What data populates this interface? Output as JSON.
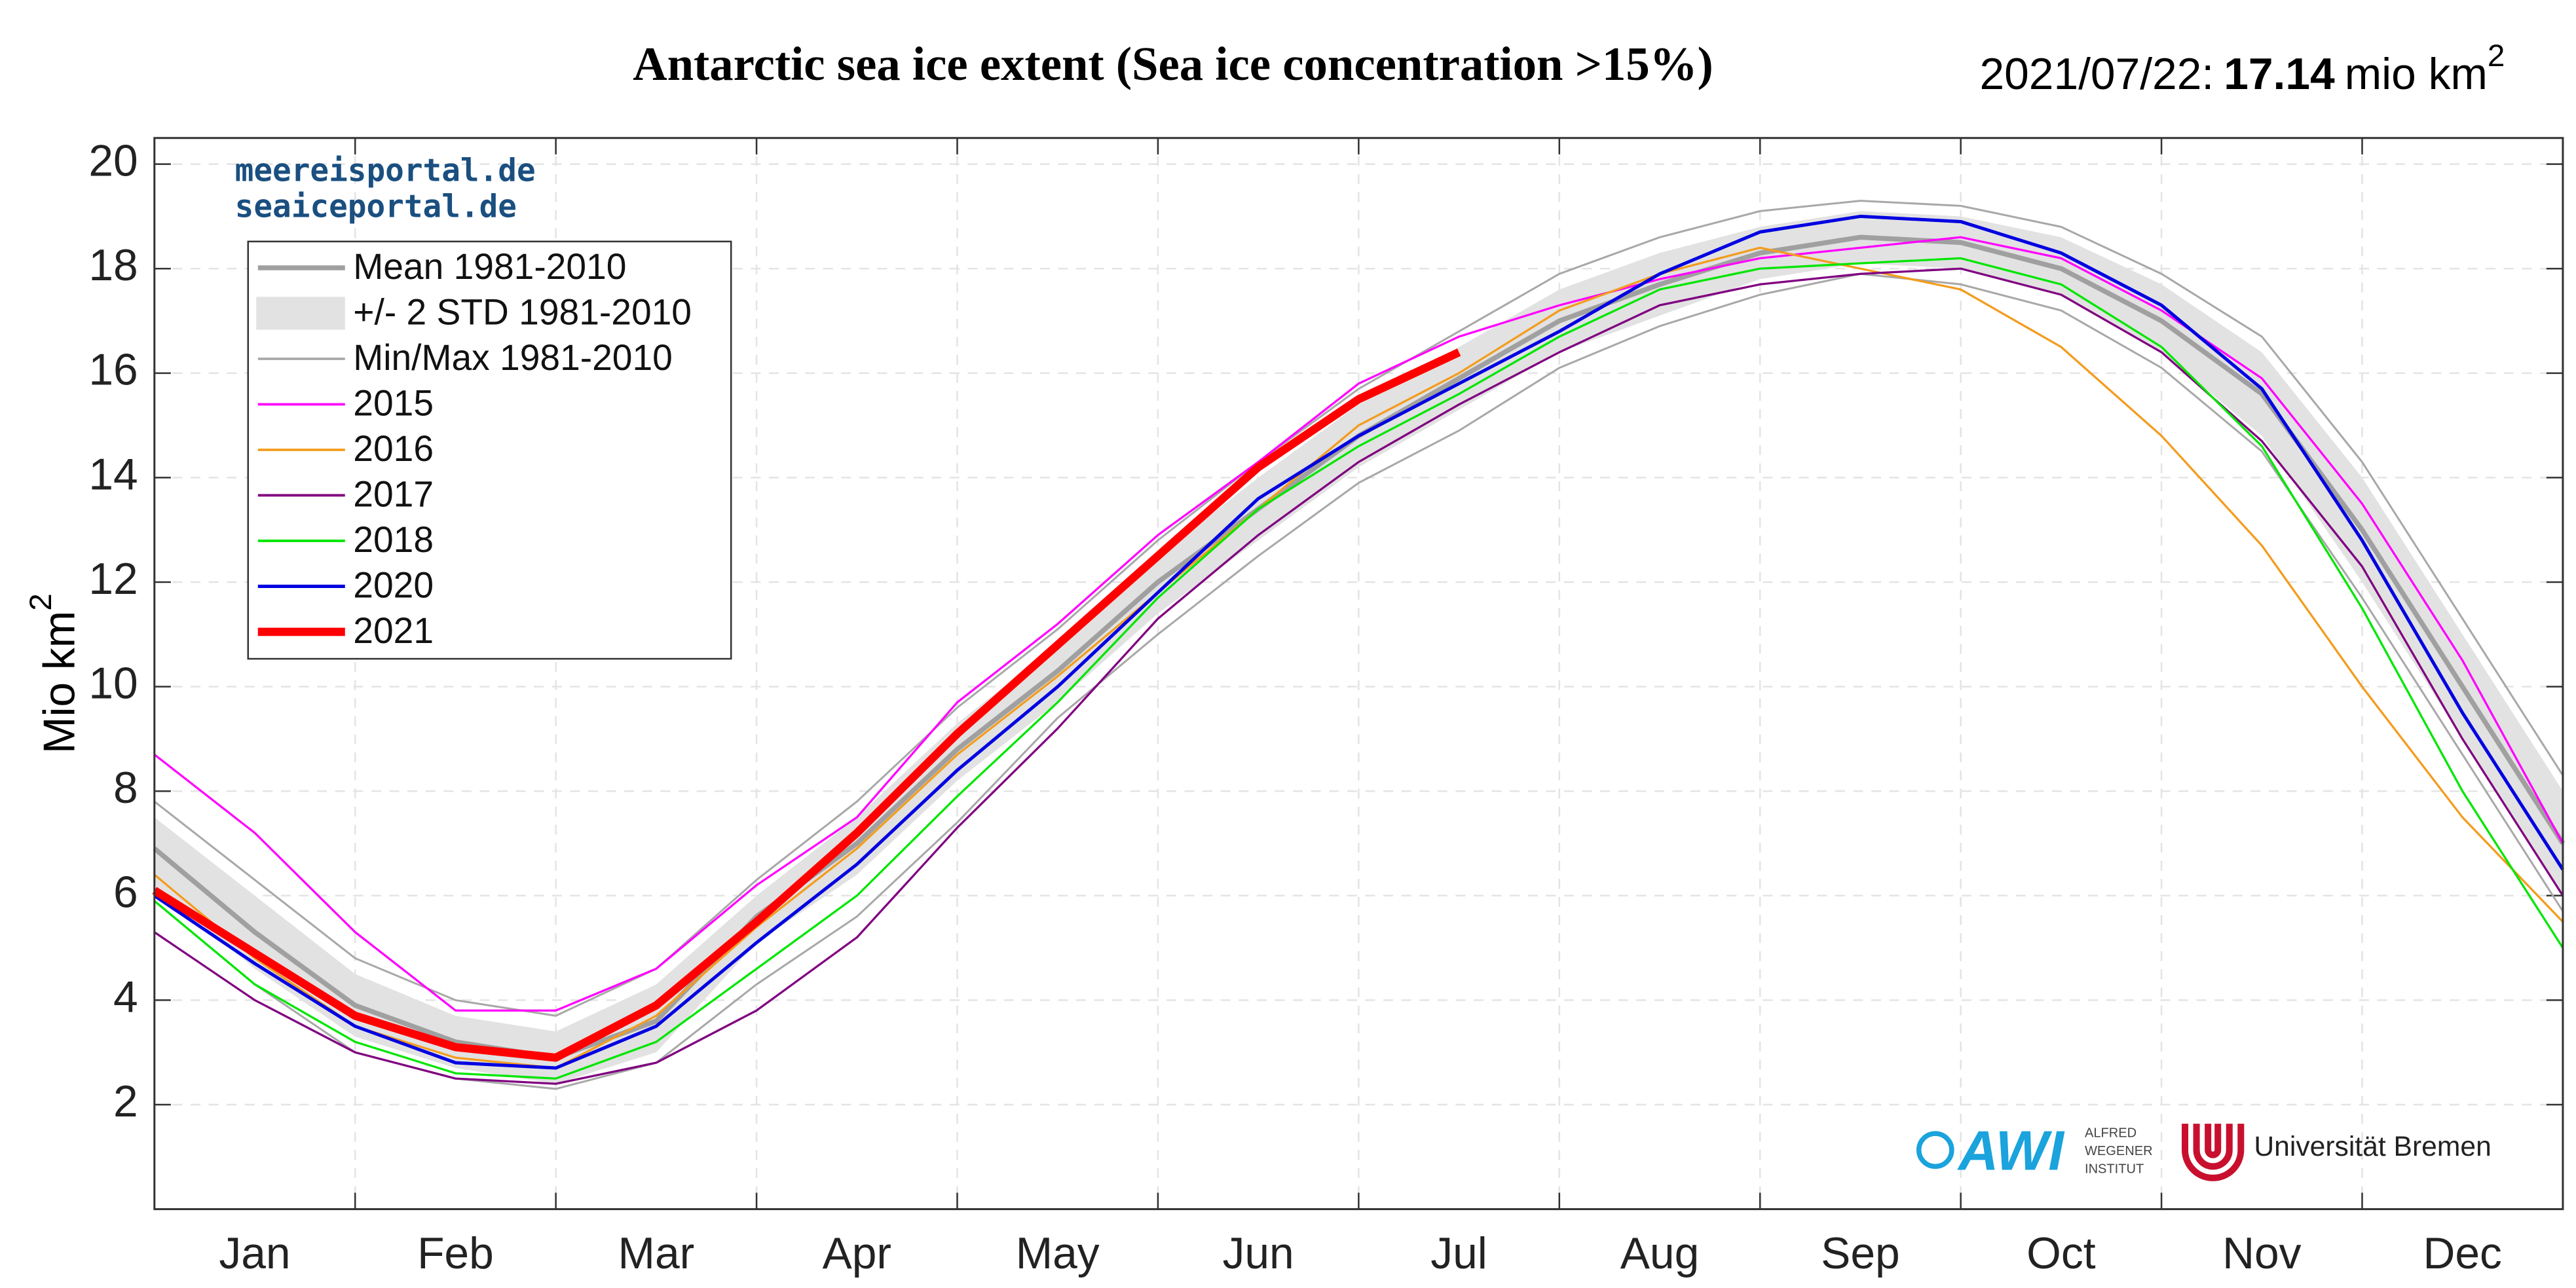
{
  "chart_data": {
    "type": "line",
    "title": "Antarctic sea ice extent (Sea ice concentration >15%)",
    "annotation": {
      "date": "2021/07/22:",
      "value": "17.14",
      "unit": "mio km",
      "unit_sup": "2"
    },
    "y_label": "Mio km",
    "y_label_sup": "2",
    "categories": [
      null,
      "Jan",
      null,
      "Feb",
      null,
      "Mar",
      null,
      "Apr",
      null,
      "May",
      null,
      "Jun",
      null,
      "Jul",
      null,
      "Aug",
      null,
      "Sep",
      null,
      "Oct",
      null,
      "Nov",
      null,
      "Dec",
      null
    ],
    "ylim": [
      0,
      20.5
    ],
    "yticks": [
      2,
      4,
      6,
      8,
      10,
      12,
      14,
      16,
      18,
      20
    ],
    "grid": true,
    "band": {
      "name": "+/- 2 STD 1981-2010",
      "color": "#e2e2e2",
      "upper": [
        7.5,
        6.0,
        4.5,
        3.7,
        3.4,
        4.3,
        6.0,
        7.5,
        9.3,
        10.8,
        12.5,
        14.0,
        15.4,
        16.5,
        17.6,
        18.3,
        18.8,
        19.1,
        19.0,
        18.6,
        17.7,
        16.4,
        14.0,
        11.0,
        8.0
      ],
      "lower": [
        6.2,
        4.6,
        3.3,
        2.7,
        2.4,
        3.0,
        5.1,
        6.4,
        8.2,
        9.7,
        11.4,
        12.8,
        14.2,
        15.3,
        16.4,
        17.1,
        17.8,
        18.1,
        18.0,
        17.5,
        16.4,
        14.8,
        12.0,
        9.0,
        6.0
      ]
    },
    "minmax": {
      "name": "Min/Max 1981-2010",
      "color": "#a8a8a8",
      "max": [
        7.8,
        6.3,
        4.8,
        4.0,
        3.7,
        4.6,
        6.3,
        7.8,
        9.6,
        11.1,
        12.8,
        14.3,
        15.7,
        16.8,
        17.9,
        18.6,
        19.1,
        19.3,
        19.2,
        18.8,
        17.9,
        16.7,
        14.3,
        11.3,
        8.3
      ],
      "min": [
        5.9,
        4.3,
        3.0,
        2.5,
        2.3,
        2.8,
        4.3,
        5.6,
        7.4,
        9.4,
        11.0,
        12.5,
        13.9,
        14.9,
        16.1,
        16.9,
        17.5,
        17.9,
        17.7,
        17.2,
        16.1,
        14.5,
        11.7,
        8.7,
        5.7
      ]
    },
    "series": [
      {
        "name": "Mean 1981-2010",
        "color": "#a0a0a0",
        "values": [
          6.9,
          5.3,
          3.9,
          3.2,
          2.9,
          3.6,
          5.6,
          7.0,
          8.8,
          10.3,
          12.0,
          13.4,
          14.8,
          15.9,
          17.0,
          17.7,
          18.3,
          18.6,
          18.5,
          18.0,
          17.0,
          15.6,
          13.0,
          10.0,
          7.0
        ]
      },
      {
        "name": "2015",
        "color": "#ff00ff",
        "values": [
          8.7,
          7.2,
          5.3,
          3.8,
          3.8,
          4.6,
          6.2,
          7.5,
          9.7,
          11.2,
          12.9,
          14.3,
          15.8,
          16.7,
          17.3,
          17.8,
          18.2,
          18.4,
          18.6,
          18.2,
          17.2,
          15.9,
          13.5,
          10.5,
          7.0
        ]
      },
      {
        "name": "2016",
        "color": "#f39c1e",
        "values": [
          6.4,
          4.8,
          3.5,
          2.9,
          2.7,
          3.7,
          5.4,
          6.9,
          8.7,
          10.2,
          11.8,
          13.4,
          15.0,
          16.0,
          17.2,
          17.9,
          18.4,
          18.0,
          17.6,
          16.5,
          14.8,
          12.7,
          10.0,
          7.5,
          5.5
        ]
      },
      {
        "name": "2017",
        "color": "#800080",
        "values": [
          5.3,
          4.0,
          3.0,
          2.5,
          2.4,
          2.8,
          3.8,
          5.2,
          7.3,
          9.2,
          11.3,
          12.9,
          14.3,
          15.4,
          16.4,
          17.3,
          17.7,
          17.9,
          18.0,
          17.5,
          16.4,
          14.7,
          12.3,
          9.0,
          6.0
        ]
      },
      {
        "name": "2018",
        "color": "#00e600",
        "values": [
          5.9,
          4.3,
          3.2,
          2.6,
          2.5,
          3.2,
          4.6,
          6.0,
          7.9,
          9.7,
          11.7,
          13.4,
          14.6,
          15.6,
          16.7,
          17.6,
          18.0,
          18.1,
          18.2,
          17.7,
          16.5,
          14.6,
          11.5,
          8.0,
          5.0
        ]
      },
      {
        "name": "2020",
        "color": "#0000e0",
        "values": [
          6.0,
          4.7,
          3.5,
          2.8,
          2.7,
          3.5,
          5.1,
          6.6,
          8.4,
          10.0,
          11.8,
          13.6,
          14.8,
          15.8,
          16.8,
          17.9,
          18.7,
          19.0,
          18.9,
          18.3,
          17.3,
          15.7,
          12.8,
          9.5,
          6.5
        ]
      },
      {
        "name": "2021",
        "color": "#ff0000",
        "values": [
          6.1,
          4.9,
          3.7,
          3.1,
          2.9,
          3.9,
          5.5,
          7.2,
          9.1,
          10.8,
          12.5,
          14.2,
          15.5,
          16.4,
          null,
          null,
          null,
          null,
          null,
          null,
          null,
          null,
          null,
          null,
          null
        ]
      }
    ]
  },
  "watermark": [
    "meereisportal.de",
    "seaiceportal.de"
  ],
  "logos": {
    "awi": "AWI",
    "awi_text": [
      "ALFRED",
      "WEGENER",
      "INSTITUT"
    ],
    "bremen": "Universität Bremen"
  }
}
